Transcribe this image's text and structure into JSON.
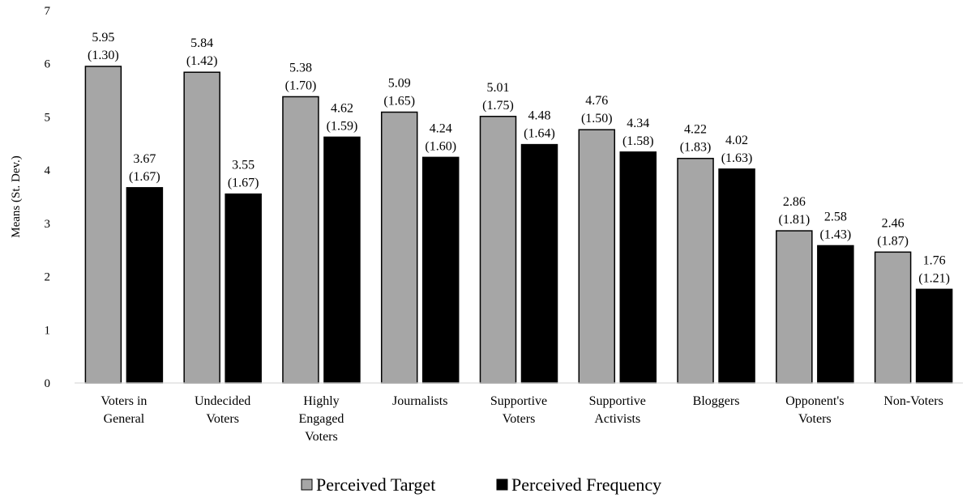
{
  "chart_data": {
    "type": "bar",
    "title": "",
    "xlabel": "",
    "ylabel": "Means (St. Dev.)",
    "ylim": [
      0,
      7
    ],
    "yticks": [
      0,
      1,
      2,
      3,
      4,
      5,
      6,
      7
    ],
    "grid": false,
    "legend_position": "bottom",
    "categories": [
      [
        "Voters in",
        "General"
      ],
      [
        "Undecided",
        "Voters"
      ],
      [
        "Highly",
        "Engaged",
        "Voters"
      ],
      [
        "Journalists"
      ],
      [
        "Supportive",
        "Voters"
      ],
      [
        "Supportive",
        "Activists"
      ],
      [
        "Bloggers"
      ],
      [
        "Opponent's",
        "Voters"
      ],
      [
        "Non-Voters"
      ]
    ],
    "series": [
      {
        "name": "Perceived Target",
        "color": "#a6a6a6",
        "values": [
          5.95,
          5.84,
          5.38,
          5.09,
          5.01,
          4.76,
          4.22,
          2.86,
          2.46
        ],
        "labels": [
          "5.95",
          "5.84",
          "5.38",
          "5.09",
          "5.01",
          "4.76",
          "4.22",
          "2.86",
          "2.46"
        ],
        "sd_labels": [
          "(1.30)",
          "(1.42)",
          "(1.70)",
          "(1.65)",
          "(1.75)",
          "(1.50)",
          "(1.83)",
          "(1.81)",
          "(1.87)"
        ]
      },
      {
        "name": "Perceived Frequency",
        "color": "#000000",
        "values": [
          3.67,
          3.55,
          4.62,
          4.24,
          4.48,
          4.34,
          4.02,
          2.58,
          1.76
        ],
        "labels": [
          "3.67",
          "3.55",
          "4.62",
          "4.24",
          "4.48",
          "4.34",
          "4.02",
          "2.58",
          "1.76"
        ],
        "sd_labels": [
          "(1.67)",
          "(1.67)",
          "(1.59)",
          "(1.60)",
          "(1.64)",
          "(1.58)",
          "(1.63)",
          "(1.43)",
          "(1.21)"
        ]
      }
    ]
  }
}
